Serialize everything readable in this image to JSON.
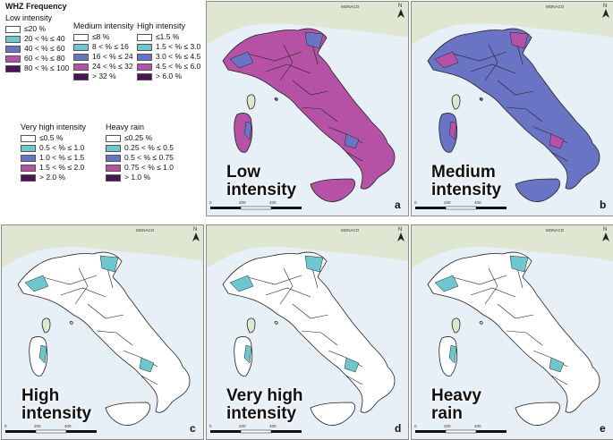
{
  "legend": {
    "title": "WHZ Frequency",
    "groups": [
      {
        "id": "low",
        "heading": "Low intensity",
        "items": [
          {
            "label": "≤20 %",
            "color": "#ffffff"
          },
          {
            "label": "20 < % ≤ 40",
            "color": "#6ec6cf"
          },
          {
            "label": "40 < % ≤ 60",
            "color": "#6a74c4"
          },
          {
            "label": "60 < % ≤ 80",
            "color": "#b552a6"
          },
          {
            "label": "80 < % ≤ 100",
            "color": "#4a1456"
          }
        ]
      },
      {
        "id": "medium",
        "heading": "Medium intensity",
        "items": [
          {
            "label": "≤8 %",
            "color": "#ffffff"
          },
          {
            "label": "8 < % ≤ 16",
            "color": "#6ec6cf"
          },
          {
            "label": "16 < % ≤ 24",
            "color": "#6a74c4"
          },
          {
            "label": "24 < % ≤ 32",
            "color": "#b552a6"
          },
          {
            "label": "> 32 %",
            "color": "#4a1456"
          }
        ]
      },
      {
        "id": "high",
        "heading": "High intensity",
        "items": [
          {
            "label": "≤1.5 %",
            "color": "#ffffff"
          },
          {
            "label": "1.5 < % ≤ 3.0",
            "color": "#6ec6cf"
          },
          {
            "label": "3.0 < % ≤ 4.5",
            "color": "#6a74c4"
          },
          {
            "label": "4.5 < % ≤ 6.0",
            "color": "#b552a6"
          },
          {
            "label": "> 6.0 %",
            "color": "#4a1456"
          }
        ]
      },
      {
        "id": "veryhigh",
        "heading": "Very high intensity",
        "items": [
          {
            "label": "≤0.5 %",
            "color": "#ffffff"
          },
          {
            "label": "0.5 < % ≤ 1.0",
            "color": "#6ec6cf"
          },
          {
            "label": "1.0 < % ≤ 1.5",
            "color": "#6a74c4"
          },
          {
            "label": "1.5 < % ≤ 2.0",
            "color": "#b552a6"
          },
          {
            "label": "> 2.0 %",
            "color": "#4a1456"
          }
        ]
      },
      {
        "id": "rain",
        "heading": "Heavy rain",
        "items": [
          {
            "label": "≤0.25 %",
            "color": "#ffffff"
          },
          {
            "label": "0.25 < % ≤ 0.5",
            "color": "#6ec6cf"
          },
          {
            "label": "0.5 < % ≤ 0.75",
            "color": "#6a74c4"
          },
          {
            "label": "0.75 < % ≤ 1.0",
            "color": "#b552a6"
          },
          {
            "label": "> 1.0 %",
            "color": "#4a1456"
          }
        ]
      }
    ]
  },
  "panels": [
    {
      "id": "a",
      "name_line1": "Low",
      "name_line2": "intensity",
      "letter": "a",
      "fill": "#b552a6",
      "accent": "#6a74c4",
      "scale": [
        "0",
        "200",
        "400"
      ],
      "country": "MONACO"
    },
    {
      "id": "b",
      "name_line1": "Medium",
      "name_line2": "intensity",
      "letter": "b",
      "fill": "#6a74c4",
      "accent": "#b552a6",
      "scale": [
        "0",
        "200",
        "400"
      ],
      "country": "MONACO"
    },
    {
      "id": "c",
      "name_line1": "High",
      "name_line2": "intensity",
      "letter": "c",
      "fill": "#ffffff",
      "accent": "#6ec6cf",
      "scale": [
        "0",
        "200",
        "400"
      ],
      "country": "MONACO"
    },
    {
      "id": "d",
      "name_line1": "Very high",
      "name_line2": "intensity",
      "letter": "d",
      "fill": "#ffffff",
      "accent": "#6ec6cf",
      "scale": [
        "0",
        "200",
        "400"
      ],
      "country": "MONACO"
    },
    {
      "id": "e",
      "name_line1": "Heavy",
      "name_line2": "rain",
      "letter": "e",
      "fill": "#ffffff",
      "accent": "#6ec6cf",
      "scale": [
        "0",
        "200",
        "400"
      ],
      "country": "MONACO"
    }
  ],
  "north_label": "N"
}
